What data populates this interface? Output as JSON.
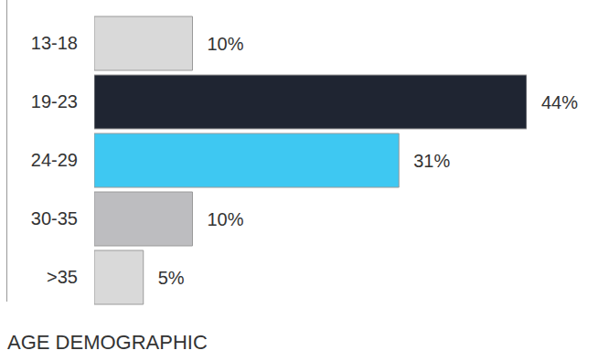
{
  "chart_data": {
    "type": "bar",
    "title": "AGE DEMOGRAPHIC",
    "orientation": "horizontal",
    "categories": [
      "13-18",
      "19-23",
      "24-29",
      "30-35",
      ">35"
    ],
    "values": [
      10,
      44,
      31,
      10,
      5
    ],
    "value_labels": [
      "10%",
      "44%",
      "31%",
      "10%",
      "5%"
    ],
    "colors": [
      "#d9d9d9",
      "#1f2532",
      "#3ec8f2",
      "#bdbdc0",
      "#d9d9d9"
    ],
    "data_labels": true,
    "tick_labels": "y"
  }
}
